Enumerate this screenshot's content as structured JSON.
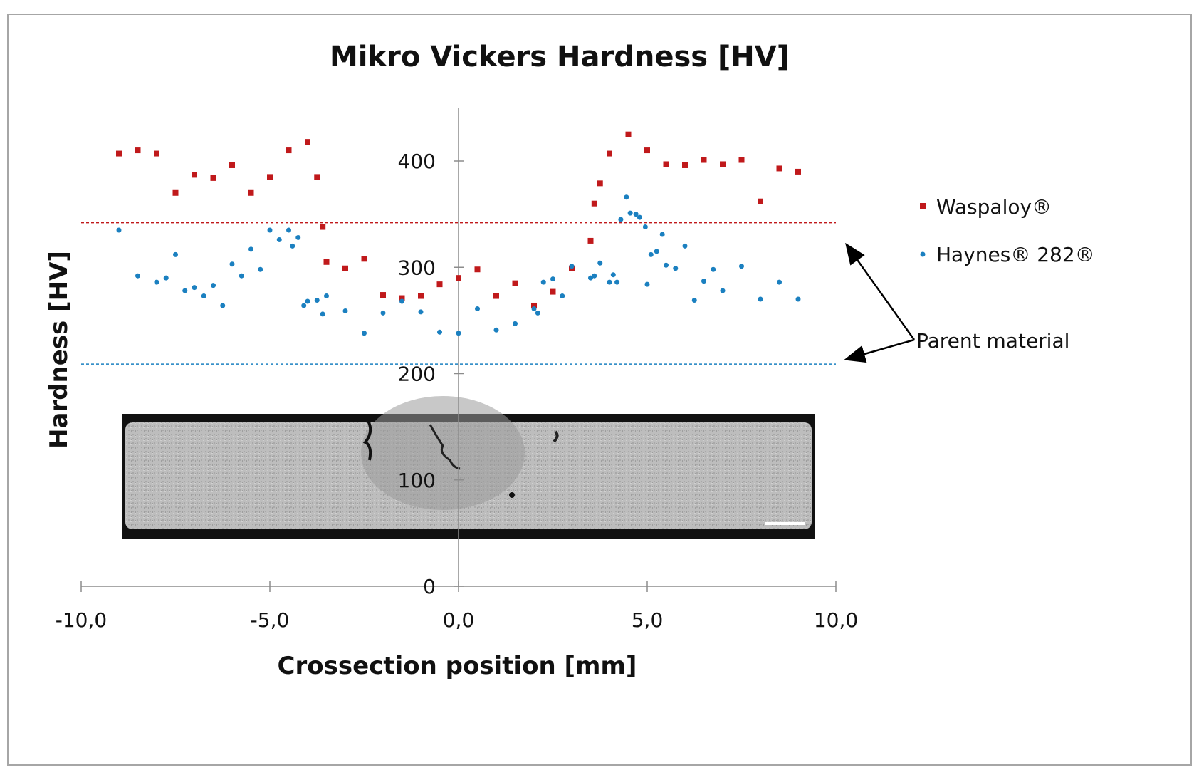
{
  "chart_data": {
    "type": "scatter",
    "title": "Mikro Vickers Hardness [HV]",
    "xlabel": "Crossection position [mm]",
    "ylabel": "Hardness [HV]",
    "xlim": [
      -10,
      10
    ],
    "ylim": [
      0,
      450
    ],
    "x_ticks": [
      -10,
      -5,
      0,
      5,
      10
    ],
    "x_tick_labels": [
      "-10,0",
      "-5,0",
      "0,0",
      "5,0",
      "10,0"
    ],
    "y_ticks": [
      0,
      100,
      200,
      300,
      400
    ],
    "y_tick_labels": [
      "0",
      "100",
      "200",
      "300",
      "400"
    ],
    "grid": false,
    "legend_position": "right",
    "series": [
      {
        "name": "Waspaloy®",
        "color": "#c0191b",
        "marker": "square",
        "parent_material_hv": 342,
        "points": [
          [
            -9.0,
            407
          ],
          [
            -8.5,
            410
          ],
          [
            -8.0,
            407
          ],
          [
            -7.5,
            370
          ],
          [
            -7.0,
            387
          ],
          [
            -6.5,
            384
          ],
          [
            -6.0,
            396
          ],
          [
            -5.5,
            370
          ],
          [
            -5.0,
            385
          ],
          [
            -4.5,
            410
          ],
          [
            -4.0,
            418
          ],
          [
            -3.75,
            385
          ],
          [
            -3.6,
            338
          ],
          [
            -3.5,
            305
          ],
          [
            -3.0,
            299
          ],
          [
            -2.5,
            308
          ],
          [
            -2.0,
            274
          ],
          [
            -1.5,
            271
          ],
          [
            -1.0,
            273
          ],
          [
            -0.5,
            284
          ],
          [
            0.0,
            290
          ],
          [
            0.5,
            298
          ],
          [
            1.0,
            273
          ],
          [
            1.5,
            285
          ],
          [
            2.0,
            264
          ],
          [
            2.5,
            277
          ],
          [
            3.0,
            299
          ],
          [
            3.5,
            325
          ],
          [
            3.6,
            360
          ],
          [
            3.75,
            379
          ],
          [
            4.0,
            407
          ],
          [
            4.5,
            425
          ],
          [
            5.0,
            410
          ],
          [
            5.5,
            397
          ],
          [
            6.0,
            396
          ],
          [
            6.5,
            401
          ],
          [
            7.0,
            397
          ],
          [
            7.5,
            401
          ],
          [
            8.0,
            362
          ],
          [
            8.5,
            393
          ],
          [
            9.0,
            390
          ]
        ]
      },
      {
        "name": "Haynes® 282®",
        "color": "#1b80c0",
        "marker": "circle",
        "parent_material_hv": 209,
        "points": [
          [
            -9.0,
            335
          ],
          [
            -8.5,
            292
          ],
          [
            -8.0,
            286
          ],
          [
            -7.75,
            290
          ],
          [
            -7.5,
            312
          ],
          [
            -7.25,
            278
          ],
          [
            -7.0,
            281
          ],
          [
            -6.75,
            273
          ],
          [
            -6.5,
            283
          ],
          [
            -6.25,
            264
          ],
          [
            -6.0,
            303
          ],
          [
            -5.75,
            292
          ],
          [
            -5.5,
            317
          ],
          [
            -5.25,
            298
          ],
          [
            -5.0,
            335
          ],
          [
            -4.75,
            326
          ],
          [
            -4.5,
            335
          ],
          [
            -4.4,
            320
          ],
          [
            -4.25,
            328
          ],
          [
            -4.1,
            264
          ],
          [
            -4.0,
            268
          ],
          [
            -3.75,
            269
          ],
          [
            -3.6,
            256
          ],
          [
            -3.5,
            273
          ],
          [
            -3.0,
            259
          ],
          [
            -2.5,
            238
          ],
          [
            -2.0,
            257
          ],
          [
            -1.5,
            268
          ],
          [
            -1.0,
            258
          ],
          [
            -0.5,
            239
          ],
          [
            0.0,
            238
          ],
          [
            0.5,
            261
          ],
          [
            1.0,
            241
          ],
          [
            1.5,
            247
          ],
          [
            2.0,
            261
          ],
          [
            2.1,
            257
          ],
          [
            2.25,
            286
          ],
          [
            2.5,
            289
          ],
          [
            2.75,
            273
          ],
          [
            3.0,
            301
          ],
          [
            3.5,
            290
          ],
          [
            3.6,
            292
          ],
          [
            3.75,
            304
          ],
          [
            4.0,
            286
          ],
          [
            4.1,
            293
          ],
          [
            4.2,
            286
          ],
          [
            4.3,
            345
          ],
          [
            4.45,
            366
          ],
          [
            4.55,
            351
          ],
          [
            4.7,
            350
          ],
          [
            4.8,
            347
          ],
          [
            4.95,
            338
          ],
          [
            5.0,
            284
          ],
          [
            5.1,
            312
          ],
          [
            5.25,
            315
          ],
          [
            5.4,
            331
          ],
          [
            5.5,
            302
          ],
          [
            5.75,
            299
          ],
          [
            6.0,
            320
          ],
          [
            6.25,
            269
          ],
          [
            6.5,
            287
          ],
          [
            6.75,
            298
          ],
          [
            7.0,
            278
          ],
          [
            7.5,
            301
          ],
          [
            8.0,
            270
          ],
          [
            8.5,
            286
          ],
          [
            9.0,
            270
          ]
        ]
      }
    ],
    "annotation": "Parent material"
  }
}
